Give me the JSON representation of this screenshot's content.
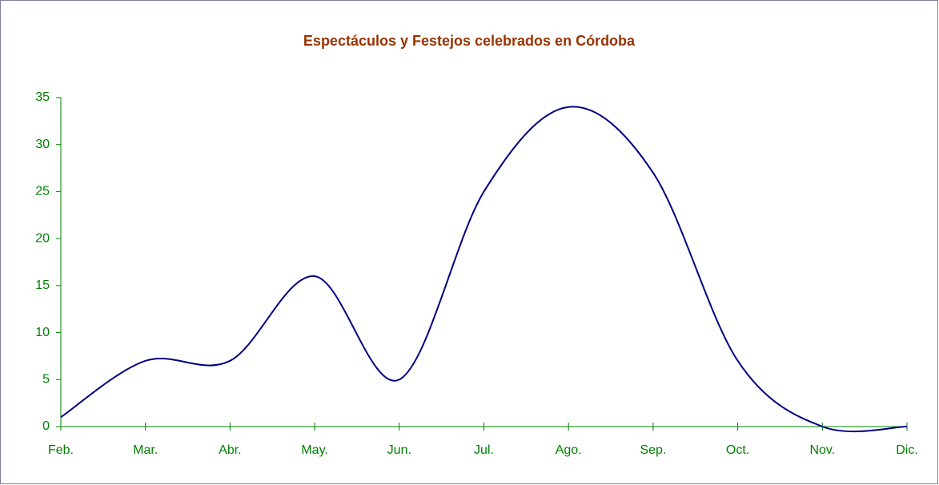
{
  "chart_data": {
    "type": "line",
    "title": "Espectáculos y Festejos celebrados en Córdoba",
    "categories": [
      "Feb.",
      "Mar.",
      "Abr.",
      "May.",
      "Jun.",
      "Jul.",
      "Ago.",
      "Sep.",
      "Oct.",
      "Nov.",
      "Dic."
    ],
    "series": [
      {
        "color": "#000080",
        "values": [
          1,
          7,
          7,
          16,
          5,
          25,
          34,
          27,
          7,
          0,
          0
        ]
      }
    ],
    "smooth": true,
    "ylim": [
      0,
      35
    ],
    "yticks": [
      0,
      5,
      10,
      15,
      20,
      25,
      30,
      35
    ],
    "grid": false
  }
}
